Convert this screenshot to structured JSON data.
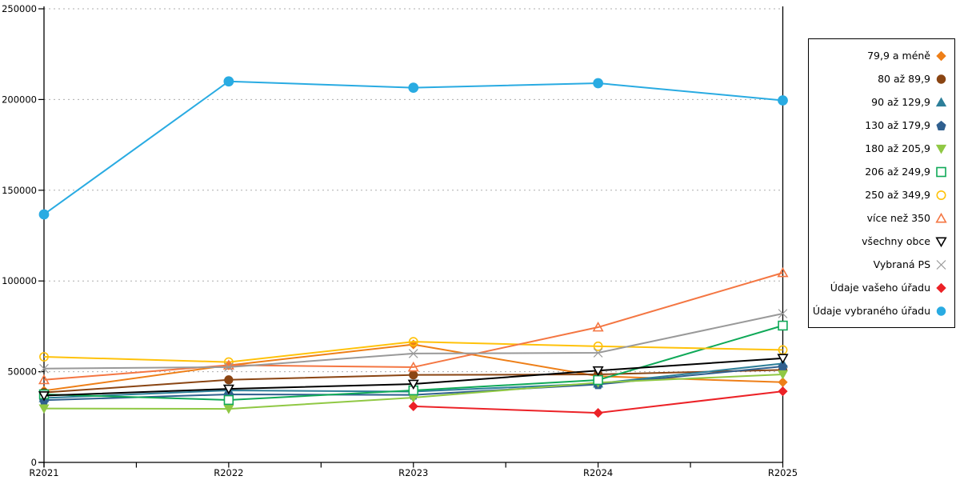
{
  "page": {
    "background": "#ffffff",
    "axis_color": "#000000",
    "grid_color": "#adadad",
    "text_color": "#000000"
  },
  "chart_data": {
    "type": "line",
    "title": "",
    "xlabel": "",
    "ylabel": "",
    "categories": [
      "R2021",
      "R2022",
      "R2023",
      "R2024",
      "R2025"
    ],
    "ylim": [
      0,
      250000
    ],
    "ytick_interval": 50000,
    "ytick_labels": [
      "0",
      "50000",
      "100000",
      "150000",
      "200000",
      "250000"
    ],
    "grid": "horizontal-dotted",
    "legend_position": "right",
    "series": [
      {
        "name": "79,9 a méně",
        "marker": "diamond",
        "fill": "solid",
        "color": "#EE7F18",
        "values": [
          39500,
          53500,
          65000,
          47500,
          44200
        ]
      },
      {
        "name": "80 až 89,9",
        "marker": "circle",
        "fill": "solid",
        "color": "#8A4513",
        "values": [
          38500,
          45500,
          48200,
          48500,
          51000
        ]
      },
      {
        "name": "90 až 129,9",
        "marker": "triangle-up",
        "fill": "solid",
        "color": "#2D7F99",
        "values": [
          35500,
          39700,
          39000,
          43500,
          54500
        ]
      },
      {
        "name": "130 až 179,9",
        "marker": "pentagon",
        "fill": "solid",
        "color": "#30608F",
        "values": [
          34300,
          37500,
          37200,
          43000,
          52900
        ]
      },
      {
        "name": "180 až 205,9",
        "marker": "triangle-down",
        "fill": "solid",
        "color": "#90C844",
        "values": [
          29700,
          29500,
          35700,
          44000,
          48500
        ]
      },
      {
        "name": "206 až 249,9",
        "marker": "square",
        "fill": "open",
        "color": "#0FA958",
        "values": [
          37500,
          34400,
          39700,
          45400,
          75400
        ]
      },
      {
        "name": "250 až 349,9",
        "marker": "circle",
        "fill": "open",
        "color": "#FFC20A",
        "values": [
          58200,
          55300,
          66500,
          64000,
          62000
        ]
      },
      {
        "name": "více než 350",
        "marker": "triangle-up",
        "fill": "open",
        "color": "#F47642",
        "values": [
          45500,
          53600,
          52500,
          74500,
          104500
        ]
      },
      {
        "name": "všechny obce",
        "marker": "triangle-down",
        "fill": "open",
        "color": "#000000",
        "values": [
          36800,
          40500,
          43200,
          50600,
          57400
        ]
      },
      {
        "name": "Vybraná PS",
        "marker": "x",
        "fill": "open",
        "color": "#999999",
        "values": [
          51700,
          52500,
          60000,
          60400,
          82000
        ]
      },
      {
        "name": "Údaje vašeho úřadu",
        "marker": "diamond",
        "fill": "solid",
        "color": "#EC2227",
        "values": [
          null,
          null,
          30900,
          27300,
          39200
        ]
      },
      {
        "name": "Údaje vybraného úřadu",
        "marker": "circle",
        "fill": "solid",
        "color": "#29ABE2",
        "values": [
          136700,
          210000,
          206500,
          209000,
          199500
        ]
      }
    ]
  }
}
